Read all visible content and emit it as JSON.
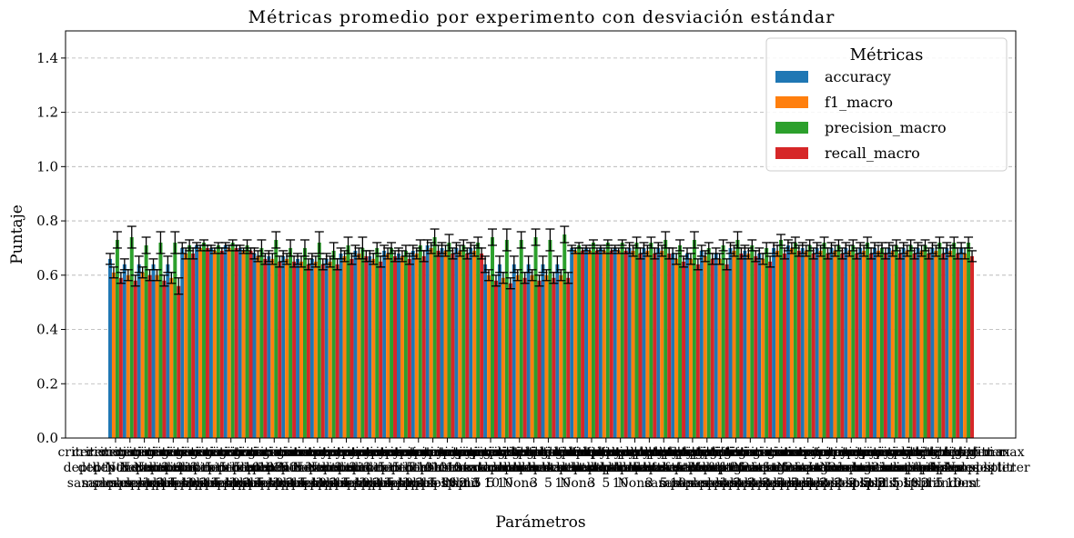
{
  "chart_data": {
    "type": "bar",
    "title": "Métricas promedio por experimento con desviación estándar",
    "xlabel": "Parámetros",
    "ylabel": "Puntaje",
    "ylim": [
      0,
      1.5
    ],
    "yticks": [
      "0.0",
      "0.2",
      "0.4",
      "0.6",
      "0.8",
      "1.0",
      "1.2",
      "1.4"
    ],
    "grid": "y-dashed",
    "legend": {
      "title": "Métricas",
      "placement": "top-right"
    },
    "categories": [
      "criterion gini max depth None min samples split 2",
      "criterion gini max depth None min samples split 5",
      "criterion gini max depth None min samples split 10",
      "criterion gini max depth 3 min samples split 2",
      "criterion gini max depth 3 min samples split 5",
      "criterion gini max depth 3 min samples split 10",
      "criterion gini max depth 5 min samples split 2",
      "criterion gini max depth 5 min samples split 5",
      "criterion gini max depth 5 min samples split 10",
      "criterion gini max depth 10 min samples split 2",
      "criterion gini max depth 10 min samples split 5",
      "criterion gini max depth 10 min samples split 10",
      "criterion entropy max depth None min samples split 2",
      "criterion entropy max depth None min samples split 5",
      "criterion entropy max depth None min samples split 10",
      "criterion entropy max depth 3 min samples split 2",
      "criterion entropy max depth 3 min samples split 5",
      "criterion entropy max depth 3 min samples split 10",
      "criterion entropy max depth 5 min samples split 2",
      "criterion entropy max depth 5 min samples split 5",
      "criterion entropy max depth 5 min samples split 10",
      "criterion entropy max depth 10 min samples split 2",
      "criterion entropy max depth 10 min samples split 5",
      "criterion entropy max depth 10 min samples split 10",
      "criterion gini splitter best max depth None",
      "criterion gini splitter best max depth 3",
      "criterion gini splitter best max depth 5",
      "criterion gini splitter best max depth 10",
      "criterion gini splitter random max depth None",
      "criterion gini splitter random max depth 3",
      "criterion gini splitter random max depth 5",
      "criterion gini splitter random max depth 10",
      "criterion entropy splitter best max depth None",
      "criterion entropy splitter best max depth 3",
      "criterion entropy splitter best max depth 5",
      "criterion entropy splitter best max depth 10",
      "criterion entropy splitter random max depth None",
      "criterion entropy splitter random max depth 3",
      "criterion entropy splitter random max depth 5",
      "criterion entropy splitter random max depth 10",
      "criterion gini max features None min samples split 2",
      "criterion gini max features sqrt min samples split 2",
      "criterion gini max features log2 min samples split 2",
      "criterion gini max features None min samples split 5",
      "criterion gini max features sqrt min samples split 5",
      "criterion gini max features log2 min samples split 5",
      "criterion entropy max features None min samples split 2",
      "criterion entropy max features sqrt min samples split 2",
      "criterion entropy max features log2 min samples split 2",
      "criterion entropy max features None min samples split 5",
      "criterion entropy max features sqrt min samples split 5",
      "criterion entropy max features log2 min samples split 5",
      "criterion gini splitter random min samples split 2",
      "criterion gini splitter random min samples split 5",
      "criterion gini splitter random min samples split 10",
      "criterion gini splitter best min samples split 2",
      "criterion gini splitter best min samples split 5",
      "criterion gini splitter best min samples split 10",
      "criterion gini max depth None splitter random",
      "criterion gini max depth None splitter best"
    ],
    "series": [
      {
        "name": "accuracy",
        "color": "#1f77b4",
        "values": [
          0.66,
          0.64,
          0.64,
          0.64,
          0.64,
          0.7,
          0.71,
          0.7,
          0.71,
          0.7,
          0.68,
          0.67,
          0.67,
          0.66,
          0.66,
          0.66,
          0.68,
          0.69,
          0.67,
          0.69,
          0.68,
          0.69,
          0.71,
          0.7,
          0.7,
          0.7,
          0.64,
          0.64,
          0.64,
          0.64,
          0.64,
          0.64,
          0.7,
          0.7,
          0.7,
          0.7,
          0.7,
          0.7,
          0.7,
          0.68,
          0.68,
          0.69,
          0.68,
          0.7,
          0.69,
          0.68,
          0.7,
          0.71,
          0.7,
          0.7,
          0.7,
          0.7,
          0.7,
          0.7,
          0.7,
          0.7,
          0.7,
          0.7,
          0.7,
          0.7
        ],
        "errors": [
          0.02,
          0.02,
          0.03,
          0.02,
          0.03,
          0.02,
          0.01,
          0.01,
          0.01,
          0.01,
          0.02,
          0.02,
          0.02,
          0.02,
          0.02,
          0.02,
          0.02,
          0.02,
          0.02,
          0.02,
          0.02,
          0.02,
          0.02,
          0.02,
          0.02,
          0.02,
          0.03,
          0.03,
          0.03,
          0.03,
          0.03,
          0.03,
          0.01,
          0.01,
          0.01,
          0.01,
          0.02,
          0.02,
          0.02,
          0.02,
          0.02,
          0.02,
          0.02,
          0.02,
          0.02,
          0.02,
          0.02,
          0.02,
          0.02,
          0.02,
          0.02,
          0.02,
          0.02,
          0.02,
          0.02,
          0.02,
          0.02,
          0.02,
          0.02,
          0.02
        ]
      },
      {
        "name": "f1_macro",
        "color": "#ff7f0e",
        "values": [
          0.61,
          0.6,
          0.61,
          0.6,
          0.59,
          0.68,
          0.7,
          0.69,
          0.7,
          0.69,
          0.67,
          0.66,
          0.66,
          0.65,
          0.65,
          0.65,
          0.67,
          0.68,
          0.66,
          0.68,
          0.67,
          0.68,
          0.7,
          0.69,
          0.69,
          0.69,
          0.6,
          0.59,
          0.6,
          0.6,
          0.6,
          0.6,
          0.69,
          0.69,
          0.69,
          0.69,
          0.69,
          0.69,
          0.69,
          0.66,
          0.66,
          0.67,
          0.66,
          0.69,
          0.68,
          0.66,
          0.69,
          0.7,
          0.69,
          0.69,
          0.69,
          0.69,
          0.69,
          0.69,
          0.69,
          0.69,
          0.69,
          0.69,
          0.69,
          0.68
        ],
        "errors": [
          0.02,
          0.02,
          0.02,
          0.02,
          0.02,
          0.02,
          0.01,
          0.01,
          0.01,
          0.01,
          0.02,
          0.02,
          0.02,
          0.02,
          0.02,
          0.02,
          0.02,
          0.02,
          0.02,
          0.02,
          0.02,
          0.02,
          0.02,
          0.02,
          0.02,
          0.02,
          0.02,
          0.02,
          0.02,
          0.02,
          0.02,
          0.02,
          0.01,
          0.01,
          0.01,
          0.01,
          0.02,
          0.02,
          0.02,
          0.02,
          0.02,
          0.02,
          0.02,
          0.02,
          0.02,
          0.02,
          0.02,
          0.02,
          0.02,
          0.02,
          0.02,
          0.02,
          0.02,
          0.02,
          0.02,
          0.02,
          0.02,
          0.02,
          0.02,
          0.02
        ]
      },
      {
        "name": "precision_macro",
        "color": "#2ca02c",
        "values": [
          0.73,
          0.74,
          0.71,
          0.72,
          0.72,
          0.71,
          0.72,
          0.71,
          0.72,
          0.71,
          0.7,
          0.73,
          0.7,
          0.7,
          0.72,
          0.69,
          0.71,
          0.7,
          0.7,
          0.7,
          0.69,
          0.71,
          0.74,
          0.72,
          0.71,
          0.72,
          0.74,
          0.73,
          0.73,
          0.74,
          0.73,
          0.75,
          0.71,
          0.72,
          0.72,
          0.72,
          0.72,
          0.72,
          0.73,
          0.71,
          0.73,
          0.7,
          0.71,
          0.73,
          0.71,
          0.7,
          0.73,
          0.72,
          0.71,
          0.72,
          0.71,
          0.71,
          0.72,
          0.7,
          0.71,
          0.71,
          0.71,
          0.72,
          0.72,
          0.72
        ],
        "errors": [
          0.03,
          0.04,
          0.03,
          0.04,
          0.04,
          0.02,
          0.01,
          0.01,
          0.01,
          0.02,
          0.03,
          0.03,
          0.03,
          0.03,
          0.04,
          0.03,
          0.03,
          0.04,
          0.02,
          0.02,
          0.02,
          0.02,
          0.03,
          0.03,
          0.02,
          0.02,
          0.03,
          0.04,
          0.03,
          0.03,
          0.04,
          0.03,
          0.01,
          0.01,
          0.01,
          0.01,
          0.02,
          0.02,
          0.03,
          0.02,
          0.03,
          0.02,
          0.02,
          0.03,
          0.02,
          0.02,
          0.02,
          0.02,
          0.02,
          0.02,
          0.02,
          0.02,
          0.02,
          0.02,
          0.02,
          0.02,
          0.02,
          0.02,
          0.02,
          0.02
        ]
      },
      {
        "name": "recall_macro",
        "color": "#d62728",
        "values": [
          0.59,
          0.58,
          0.6,
          0.58,
          0.56,
          0.68,
          0.7,
          0.69,
          0.7,
          0.69,
          0.66,
          0.65,
          0.65,
          0.64,
          0.64,
          0.64,
          0.66,
          0.67,
          0.65,
          0.67,
          0.66,
          0.67,
          0.69,
          0.68,
          0.68,
          0.68,
          0.58,
          0.57,
          0.59,
          0.58,
          0.59,
          0.59,
          0.69,
          0.69,
          0.69,
          0.69,
          0.68,
          0.68,
          0.68,
          0.65,
          0.64,
          0.66,
          0.64,
          0.68,
          0.67,
          0.65,
          0.68,
          0.69,
          0.68,
          0.68,
          0.68,
          0.68,
          0.68,
          0.68,
          0.68,
          0.68,
          0.68,
          0.68,
          0.68,
          0.67
        ],
        "errors": [
          0.02,
          0.02,
          0.02,
          0.02,
          0.03,
          0.02,
          0.01,
          0.01,
          0.01,
          0.01,
          0.02,
          0.02,
          0.02,
          0.02,
          0.02,
          0.02,
          0.02,
          0.02,
          0.02,
          0.02,
          0.02,
          0.02,
          0.02,
          0.02,
          0.02,
          0.02,
          0.02,
          0.02,
          0.02,
          0.02,
          0.02,
          0.02,
          0.01,
          0.01,
          0.01,
          0.01,
          0.02,
          0.02,
          0.02,
          0.02,
          0.02,
          0.02,
          0.02,
          0.02,
          0.02,
          0.02,
          0.02,
          0.02,
          0.02,
          0.02,
          0.02,
          0.02,
          0.02,
          0.02,
          0.02,
          0.02,
          0.02,
          0.02,
          0.02,
          0.02
        ]
      }
    ]
  }
}
